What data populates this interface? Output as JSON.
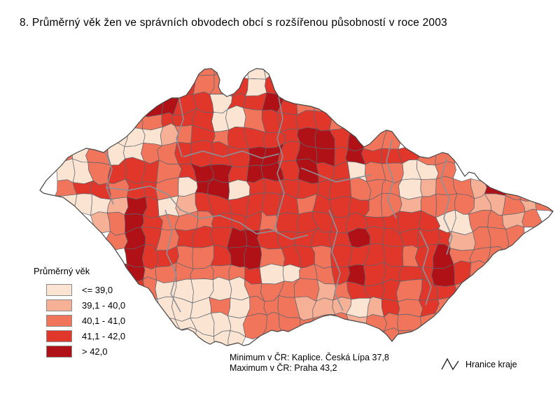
{
  "title": "8. Průměrný věk žen ve správních obvodech obcí s rozšířenou působností v roce 2003",
  "legend": {
    "title": "Průměrný věk",
    "classes": [
      {
        "label": "<= 39,0",
        "color": "#FBE5D2"
      },
      {
        "label": "39,1 - 40,0",
        "color": "#F6B096"
      },
      {
        "label": "40,1 - 41,0",
        "color": "#F0755B"
      },
      {
        "label": "41,1 - 42,0",
        "color": "#E1362A"
      },
      {
        "label": "> 42,0",
        "color": "#B01116"
      }
    ]
  },
  "notes": {
    "min": "Minimum v ČR: Kaplice. Česká Lípa 37,8",
    "max": "Maximum v ČR: Praha 43,2"
  },
  "boundary_legend": {
    "label": "Hranice kraje"
  },
  "chart_data": {
    "type": "heatmap",
    "title": "Průměrný věk žen ve správních obvodech ORP, 2003",
    "legend_classes": [
      "<= 39,0",
      "39,1 - 40,0",
      "40,1 - 41,0",
      "41,1 - 42,0",
      "> 42,0"
    ],
    "min_value": {
      "label": "Kaplice. Česká Lípa",
      "value": "37,8"
    },
    "max_value": {
      "label": "Praha",
      "value": "43,2"
    }
  },
  "map": {
    "region": "Česká republika",
    "border_color": "#474747",
    "district_border_color": "#5c6570",
    "kraj_border_color": "#8d9299",
    "grid": [
      ".........22.00................",
      "........322303................",
      ".....244330334322.............",
      ".....2233300233332............",
      "....00012323333443422.........",
      "220200223333443443433322......",
      ".00233323443443433022002......",
      ".23323320440333333222012214221",
      ".00014301333333233322122211212",
      "...12432223332333333333002212.",
      "....243233344333334333331222..",
      ".....4332234423323333234222...",
      "....4422222230022343333432....",
      ".....32000002222123332332.....",
      ".......00020222111013232......",
      ".......0000022222212222.......",
      "........0000.......222........"
    ]
  }
}
